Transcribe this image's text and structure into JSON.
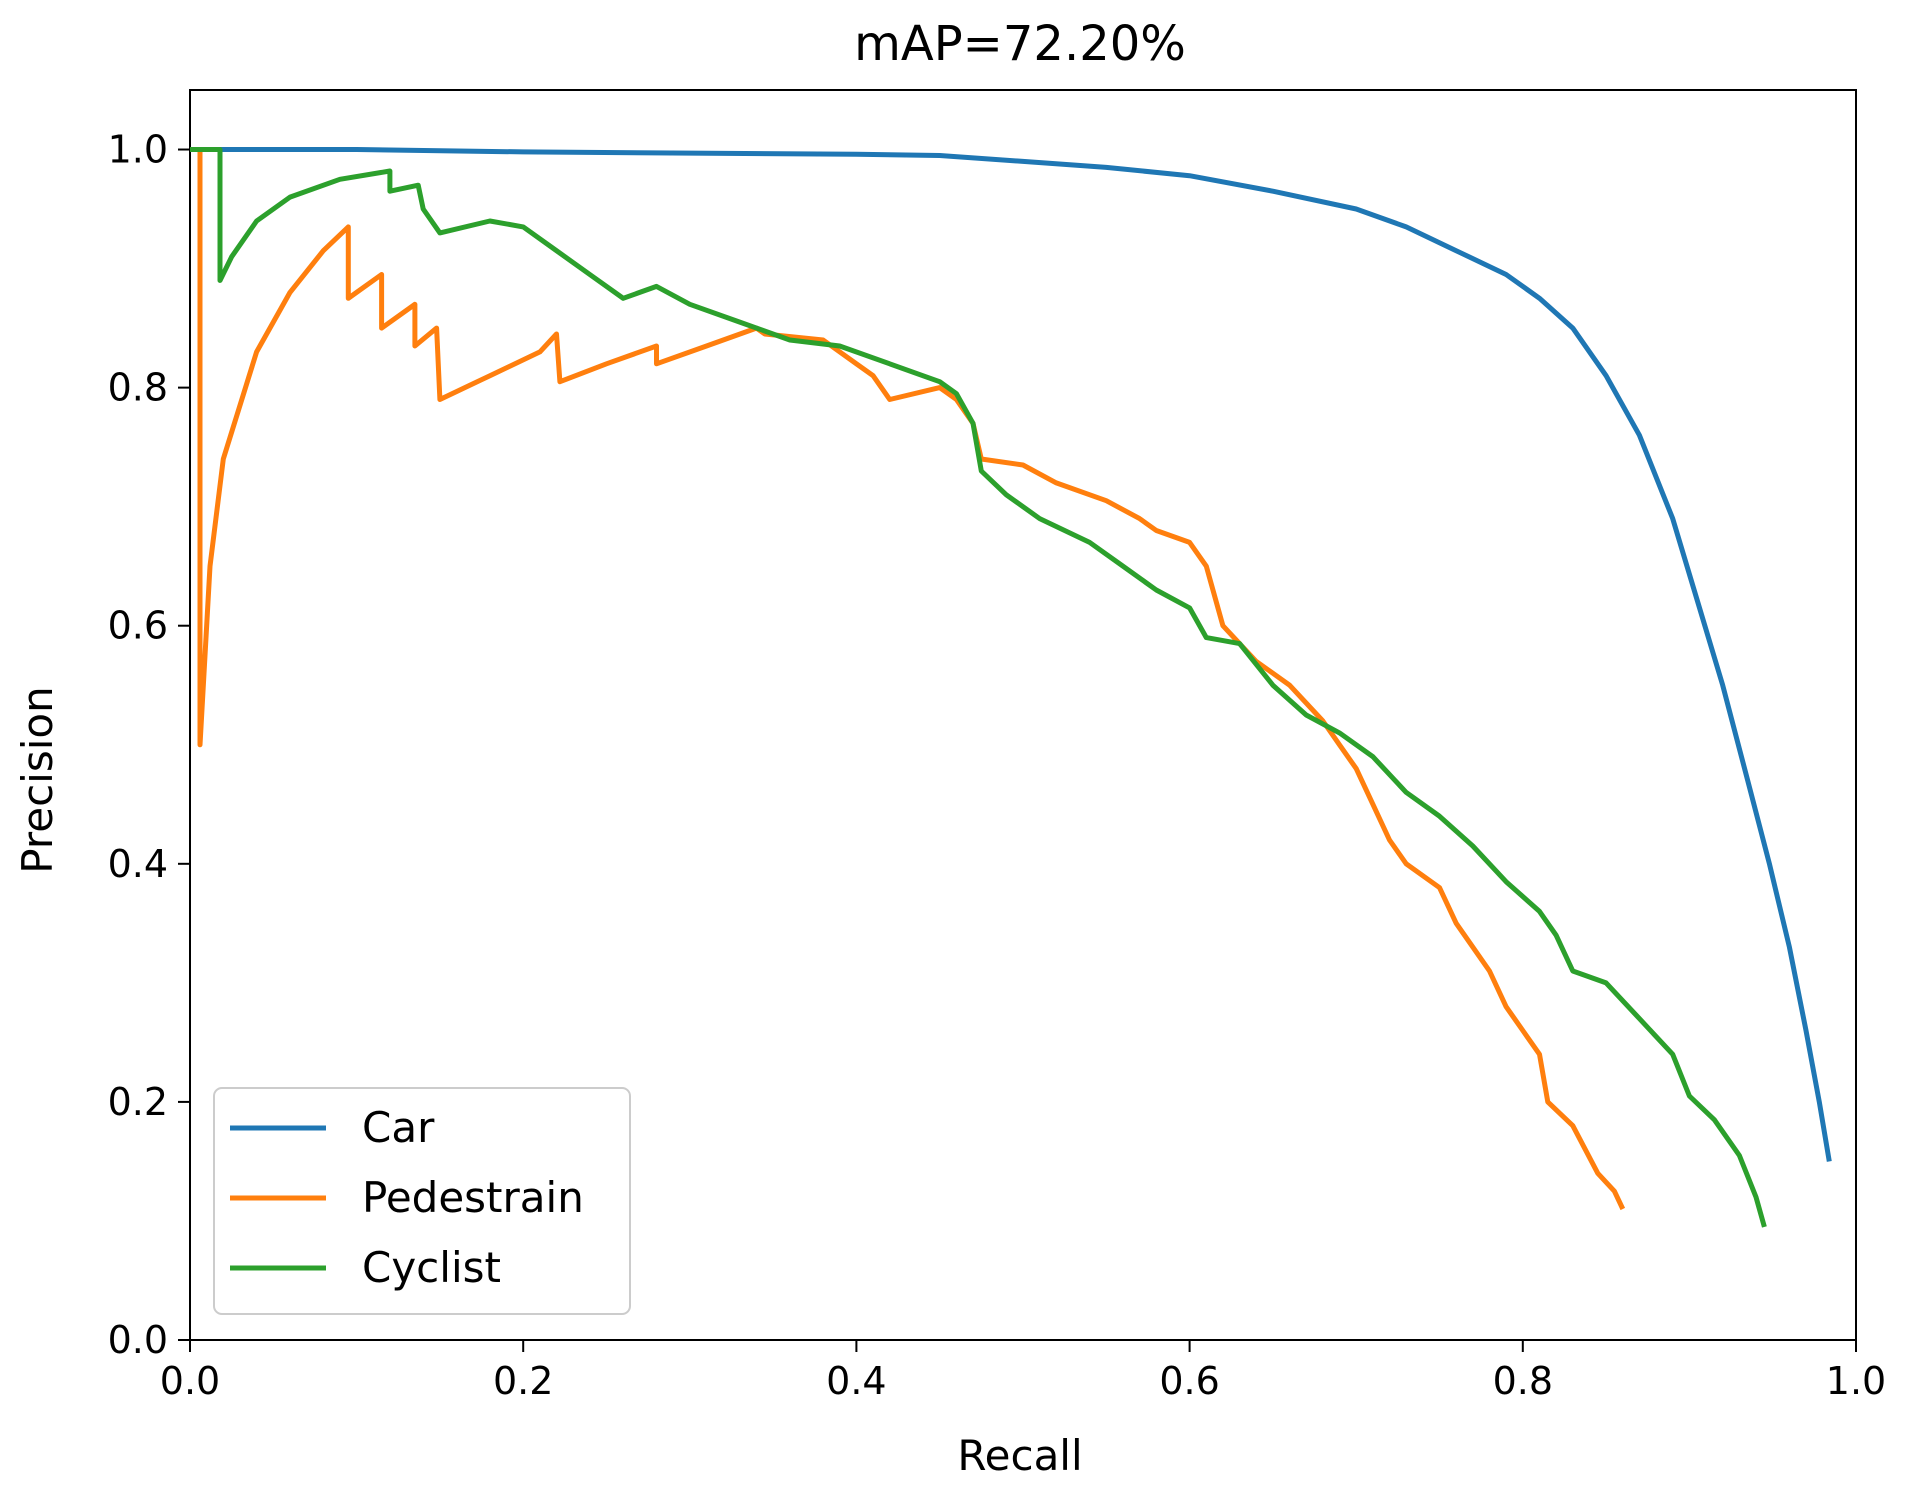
{
  "chart_data": {
    "type": "line",
    "title": "mAP=72.20%",
    "xlabel": "Recall",
    "ylabel": "Precision",
    "xlim": [
      0.0,
      1.0
    ],
    "ylim": [
      0.0,
      1.05
    ],
    "x_ticks": [
      0.0,
      0.2,
      0.4,
      0.6,
      0.8,
      1.0
    ],
    "x_tick_labels": [
      "0.0",
      "0.2",
      "0.4",
      "0.6",
      "0.8",
      "1.0"
    ],
    "y_ticks": [
      0.0,
      0.2,
      0.4,
      0.6,
      0.8,
      1.0
    ],
    "y_tick_labels": [
      "0.0",
      "0.2",
      "0.4",
      "0.6",
      "0.8",
      "1.0"
    ],
    "grid": false,
    "legend_position": "lower-left",
    "series": [
      {
        "name": "Car",
        "color": "#1f77b4",
        "points": [
          [
            0.0,
            1.0
          ],
          [
            0.05,
            1.0
          ],
          [
            0.1,
            1.0
          ],
          [
            0.2,
            0.998
          ],
          [
            0.3,
            0.997
          ],
          [
            0.4,
            0.996
          ],
          [
            0.45,
            0.995
          ],
          [
            0.5,
            0.99
          ],
          [
            0.55,
            0.985
          ],
          [
            0.6,
            0.978
          ],
          [
            0.65,
            0.965
          ],
          [
            0.7,
            0.95
          ],
          [
            0.73,
            0.935
          ],
          [
            0.76,
            0.915
          ],
          [
            0.79,
            0.895
          ],
          [
            0.81,
            0.875
          ],
          [
            0.83,
            0.85
          ],
          [
            0.85,
            0.81
          ],
          [
            0.87,
            0.76
          ],
          [
            0.89,
            0.69
          ],
          [
            0.905,
            0.62
          ],
          [
            0.92,
            0.55
          ],
          [
            0.935,
            0.47
          ],
          [
            0.948,
            0.4
          ],
          [
            0.96,
            0.33
          ],
          [
            0.97,
            0.26
          ],
          [
            0.978,
            0.2
          ],
          [
            0.984,
            0.15
          ]
        ]
      },
      {
        "name": "Pedestrain",
        "color": "#ff7f0e",
        "points": [
          [
            0.0,
            1.0
          ],
          [
            0.006,
            1.0
          ],
          [
            0.006,
            0.5
          ],
          [
            0.012,
            0.65
          ],
          [
            0.02,
            0.74
          ],
          [
            0.04,
            0.83
          ],
          [
            0.06,
            0.88
          ],
          [
            0.08,
            0.915
          ],
          [
            0.095,
            0.935
          ],
          [
            0.095,
            0.875
          ],
          [
            0.115,
            0.895
          ],
          [
            0.115,
            0.85
          ],
          [
            0.135,
            0.87
          ],
          [
            0.135,
            0.835
          ],
          [
            0.148,
            0.85
          ],
          [
            0.15,
            0.79
          ],
          [
            0.18,
            0.81
          ],
          [
            0.21,
            0.83
          ],
          [
            0.22,
            0.845
          ],
          [
            0.222,
            0.805
          ],
          [
            0.25,
            0.82
          ],
          [
            0.28,
            0.835
          ],
          [
            0.28,
            0.82
          ],
          [
            0.31,
            0.835
          ],
          [
            0.34,
            0.85
          ],
          [
            0.345,
            0.845
          ],
          [
            0.38,
            0.84
          ],
          [
            0.4,
            0.82
          ],
          [
            0.41,
            0.81
          ],
          [
            0.42,
            0.79
          ],
          [
            0.45,
            0.8
          ],
          [
            0.46,
            0.79
          ],
          [
            0.47,
            0.77
          ],
          [
            0.475,
            0.74
          ],
          [
            0.5,
            0.735
          ],
          [
            0.52,
            0.72
          ],
          [
            0.55,
            0.705
          ],
          [
            0.57,
            0.69
          ],
          [
            0.58,
            0.68
          ],
          [
            0.6,
            0.67
          ],
          [
            0.61,
            0.65
          ],
          [
            0.62,
            0.6
          ],
          [
            0.64,
            0.57
          ],
          [
            0.66,
            0.55
          ],
          [
            0.68,
            0.52
          ],
          [
            0.69,
            0.5
          ],
          [
            0.7,
            0.48
          ],
          [
            0.71,
            0.45
          ],
          [
            0.72,
            0.42
          ],
          [
            0.73,
            0.4
          ],
          [
            0.75,
            0.38
          ],
          [
            0.76,
            0.35
          ],
          [
            0.77,
            0.33
          ],
          [
            0.78,
            0.31
          ],
          [
            0.79,
            0.28
          ],
          [
            0.8,
            0.26
          ],
          [
            0.81,
            0.24
          ],
          [
            0.815,
            0.2
          ],
          [
            0.83,
            0.18
          ],
          [
            0.845,
            0.14
          ],
          [
            0.855,
            0.125
          ],
          [
            0.86,
            0.11
          ]
        ]
      },
      {
        "name": "Cyclist",
        "color": "#2ca02c",
        "points": [
          [
            0.0,
            1.0
          ],
          [
            0.018,
            1.0
          ],
          [
            0.018,
            0.89
          ],
          [
            0.025,
            0.91
          ],
          [
            0.04,
            0.94
          ],
          [
            0.06,
            0.96
          ],
          [
            0.09,
            0.975
          ],
          [
            0.12,
            0.982
          ],
          [
            0.12,
            0.965
          ],
          [
            0.137,
            0.97
          ],
          [
            0.14,
            0.95
          ],
          [
            0.15,
            0.93
          ],
          [
            0.18,
            0.94
          ],
          [
            0.2,
            0.935
          ],
          [
            0.22,
            0.915
          ],
          [
            0.24,
            0.895
          ],
          [
            0.26,
            0.875
          ],
          [
            0.28,
            0.885
          ],
          [
            0.3,
            0.87
          ],
          [
            0.33,
            0.855
          ],
          [
            0.36,
            0.84
          ],
          [
            0.39,
            0.835
          ],
          [
            0.42,
            0.82
          ],
          [
            0.45,
            0.805
          ],
          [
            0.46,
            0.795
          ],
          [
            0.47,
            0.77
          ],
          [
            0.475,
            0.73
          ],
          [
            0.49,
            0.71
          ],
          [
            0.51,
            0.69
          ],
          [
            0.54,
            0.67
          ],
          [
            0.56,
            0.65
          ],
          [
            0.58,
            0.63
          ],
          [
            0.6,
            0.615
          ],
          [
            0.61,
            0.59
          ],
          [
            0.63,
            0.585
          ],
          [
            0.65,
            0.55
          ],
          [
            0.67,
            0.525
          ],
          [
            0.69,
            0.51
          ],
          [
            0.71,
            0.49
          ],
          [
            0.73,
            0.46
          ],
          [
            0.75,
            0.44
          ],
          [
            0.77,
            0.415
          ],
          [
            0.79,
            0.385
          ],
          [
            0.81,
            0.36
          ],
          [
            0.82,
            0.34
          ],
          [
            0.83,
            0.31
          ],
          [
            0.85,
            0.3
          ],
          [
            0.87,
            0.27
          ],
          [
            0.89,
            0.24
          ],
          [
            0.9,
            0.205
          ],
          [
            0.915,
            0.185
          ],
          [
            0.93,
            0.155
          ],
          [
            0.94,
            0.12
          ],
          [
            0.945,
            0.095
          ]
        ]
      }
    ]
  }
}
